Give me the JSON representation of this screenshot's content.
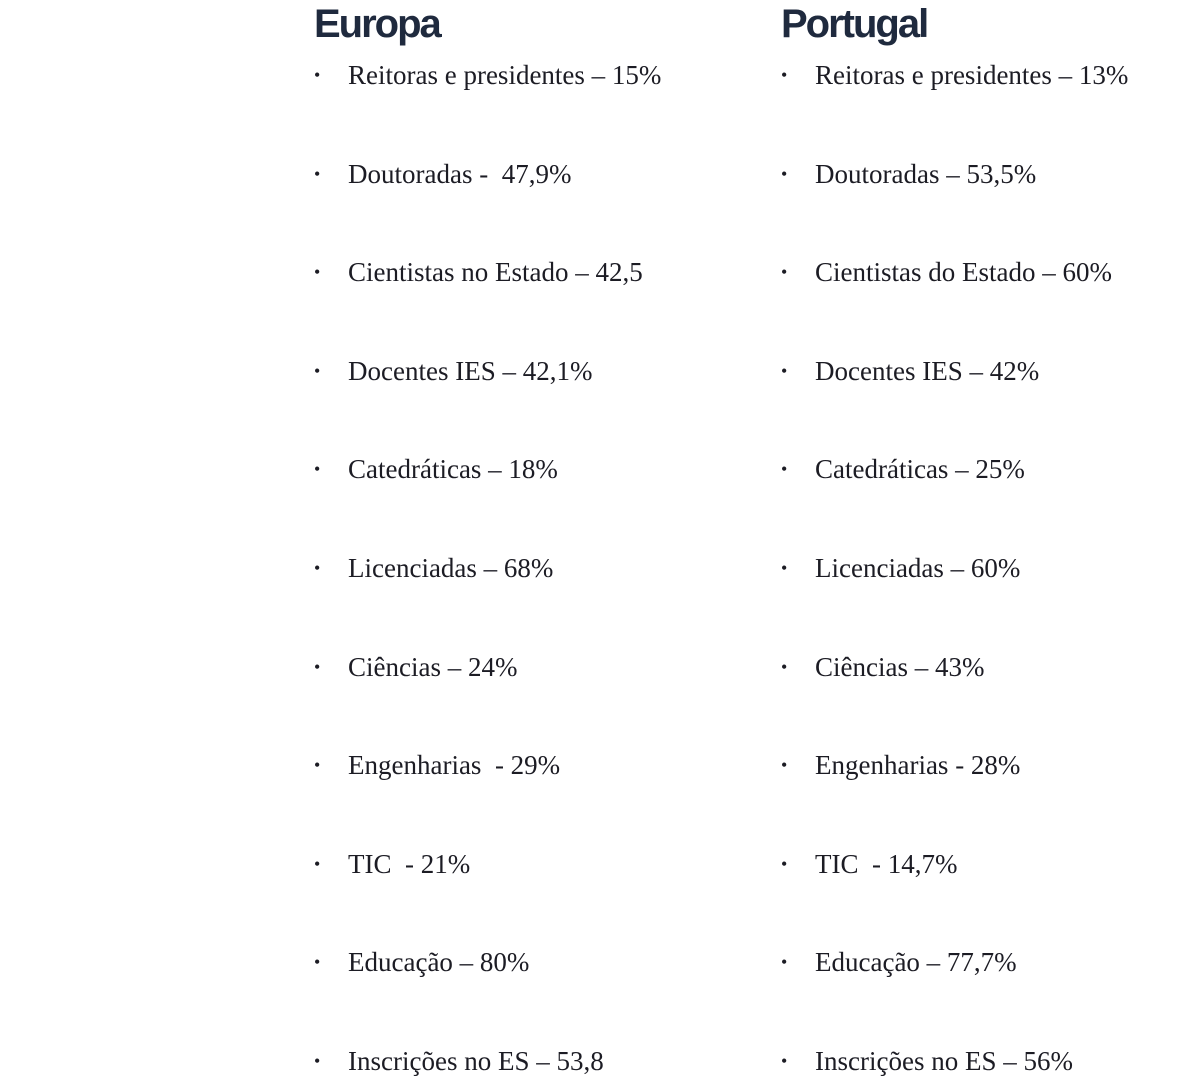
{
  "europa": {
    "title": "Europa",
    "items": [
      "Reitoras e presidentes – 15%",
      "Doutoradas -  47,9%",
      "Cientistas no Estado – 42,5",
      "Docentes IES – 42,1%",
      "Catedráticas – 18%",
      "Licenciadas – 68%",
      "Ciências – 24%",
      "Engenharias  - 29%",
      "TIC  - 21%",
      "Educação – 80%",
      "Inscrições no ES – 53,8"
    ]
  },
  "portugal": {
    "title": "Portugal",
    "items": [
      "Reitoras e presidentes – 13%",
      "Doutoradas – 53,5%",
      "Cientistas do Estado – 60%",
      "Docentes IES – 42%",
      "Catedráticas – 25%",
      "Licenciadas – 60%",
      "Ciências – 43%",
      "Engenharias - 28%",
      "TIC  - 14,7%",
      "Educação – 77,7%",
      "Inscrições no ES – 56%"
    ]
  },
  "bullet": "•"
}
